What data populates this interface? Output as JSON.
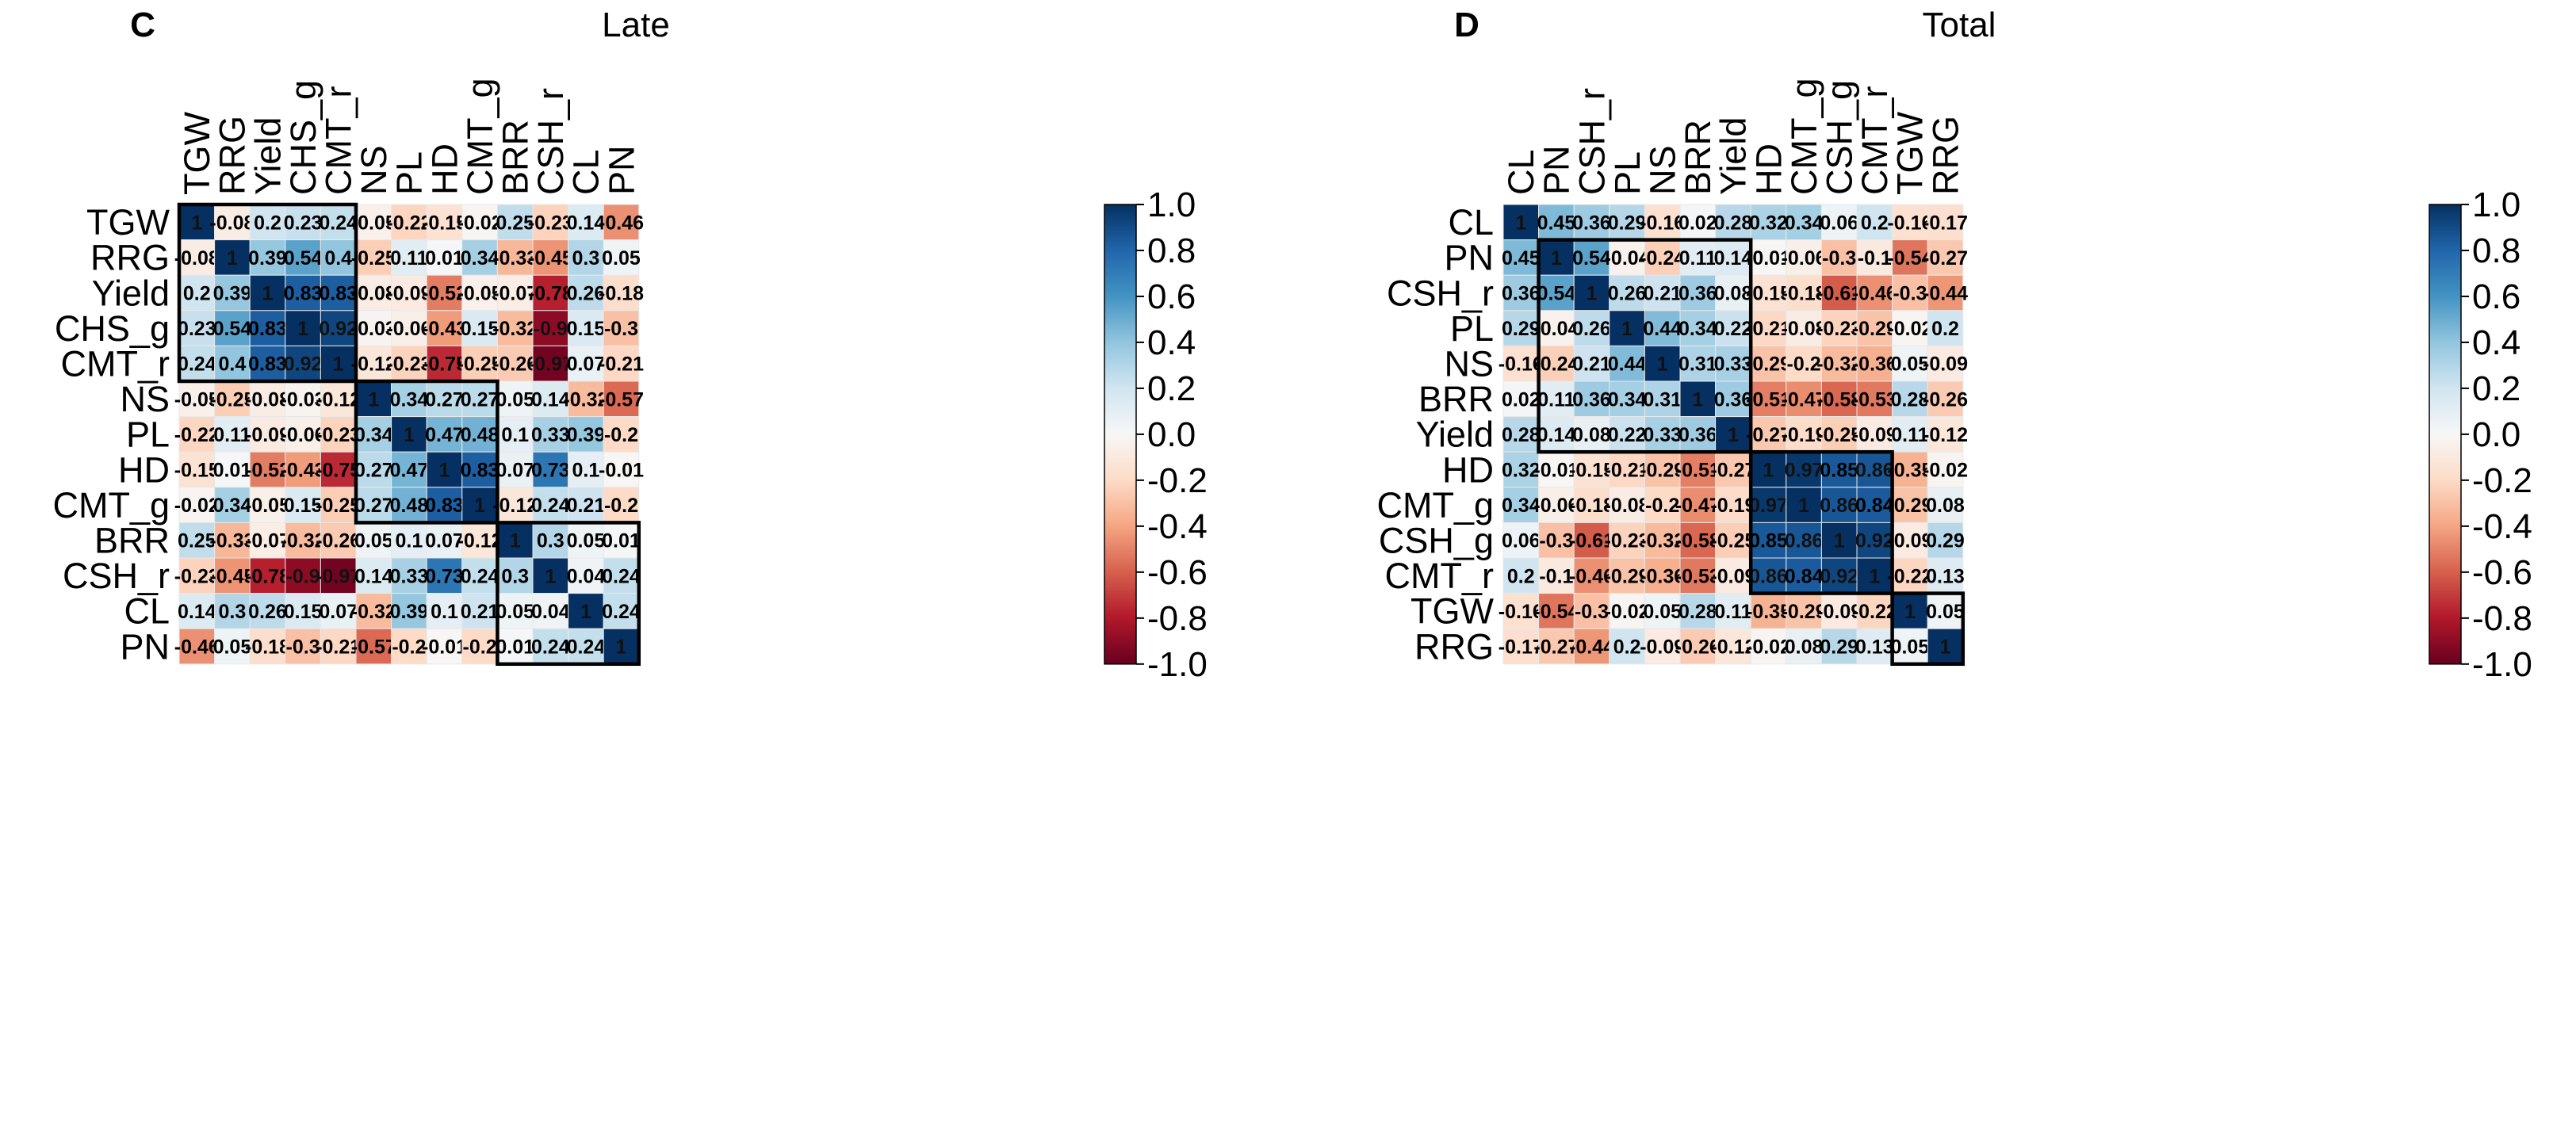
{
  "figure": {
    "background": "#ffffff"
  },
  "color_scale": {
    "stops": [
      {
        "v": -1.0,
        "c": "#67001f"
      },
      {
        "v": -0.8,
        "c": "#b2182b"
      },
      {
        "v": -0.6,
        "c": "#d6604d"
      },
      {
        "v": -0.4,
        "c": "#f4a582"
      },
      {
        "v": -0.2,
        "c": "#fddbc7"
      },
      {
        "v": 0.0,
        "c": "#f7f7f7"
      },
      {
        "v": 0.2,
        "c": "#d1e5f0"
      },
      {
        "v": 0.4,
        "c": "#92c5de"
      },
      {
        "v": 0.6,
        "c": "#4393c3"
      },
      {
        "v": 0.8,
        "c": "#2166ac"
      },
      {
        "v": 1.0,
        "c": "#053061"
      }
    ],
    "ticks": [
      "1.0",
      "0.8",
      "0.6",
      "0.4",
      "0.2",
      "0.0",
      "-0.2",
      "-0.4",
      "-0.6",
      "-0.8",
      "-1.0"
    ]
  },
  "chart_data": [
    {
      "type": "heatmap",
      "panel_letter": "C",
      "title": "Late",
      "labels": [
        "TGW",
        "RRG",
        "Yield",
        "CHS_g",
        "CMT_r",
        "NS",
        "PL",
        "HD",
        "CMT_g",
        "BRR",
        "CSH_r",
        "CL",
        "PN"
      ],
      "matrix": [
        [
          "1",
          "-0.08",
          "0.2",
          "0.23",
          "0.24",
          "-0.05",
          "-0.22",
          "-0.15",
          "-0.02",
          "0.25",
          "-0.23",
          "0.14",
          "-0.46"
        ],
        [
          "-0.08",
          "1",
          "0.39",
          "0.54",
          "0.4",
          "-0.25",
          "0.11",
          "0.01",
          "0.34",
          "-0.33",
          "-0.45",
          "0.3",
          "0.05"
        ],
        [
          "0.2",
          "0.39",
          "1",
          "0.83",
          "0.83",
          "-0.08",
          "-0.09",
          "-0.52",
          "-0.05",
          "-0.07",
          "-0.78",
          "0.26",
          "-0.18"
        ],
        [
          "0.23",
          "0.54",
          "0.83",
          "1",
          "0.92",
          "-0.03",
          "-0.06",
          "-0.43",
          "0.15",
          "-0.32",
          "-0.9",
          "0.15",
          "-0.3"
        ],
        [
          "0.24",
          "0.4",
          "0.83",
          "0.92",
          "1",
          "-0.12",
          "-0.23",
          "-0.75",
          "-0.25",
          "-0.26",
          "-0.97",
          "0.07",
          "-0.21"
        ],
        [
          "-0.05",
          "-0.25",
          "-0.08",
          "-0.03",
          "-0.12",
          "1",
          "0.34",
          "0.27",
          "0.27",
          "0.05",
          "0.14",
          "-0.32",
          "-0.57"
        ],
        [
          "-0.22",
          "0.11",
          "-0.09",
          "-0.06",
          "-0.23",
          "0.34",
          "1",
          "0.47",
          "0.48",
          "0.1",
          "0.33",
          "0.39",
          "-0.2"
        ],
        [
          "-0.15",
          "0.01",
          "-0.52",
          "-0.43",
          "-0.75",
          "0.27",
          "0.47",
          "1",
          "0.83",
          "0.07",
          "0.73",
          "0.1",
          "-0.01"
        ],
        [
          "-0.02",
          "0.34",
          "-0.05",
          "0.15",
          "-0.25",
          "0.27",
          "0.48",
          "0.83",
          "1",
          "-0.12",
          "0.24",
          "0.21",
          "-0.2"
        ],
        [
          "0.25",
          "-0.33",
          "-0.07",
          "-0.32",
          "-0.26",
          "0.05",
          "0.1",
          "0.07",
          "-0.12",
          "1",
          "0.3",
          "0.05",
          "0.01"
        ],
        [
          "-0.23",
          "-0.45",
          "-0.78",
          "-0.9",
          "-0.97",
          "0.14",
          "0.33",
          "0.73",
          "0.24",
          "0.3",
          "1",
          "0.04",
          "0.24"
        ],
        [
          "0.14",
          "0.3",
          "0.26",
          "0.15",
          "0.07",
          "-0.32",
          "0.39",
          "0.1",
          "0.21",
          "0.05",
          "0.04",
          "1",
          "0.24"
        ],
        [
          "-0.46",
          "0.05",
          "-0.18",
          "-0.3",
          "-0.21",
          "-0.57",
          "-0.2",
          "-0.01",
          "-0.2",
          "0.01",
          "0.24",
          "0.24",
          "1"
        ]
      ],
      "clusters": [
        [
          0,
          4
        ],
        [
          5,
          8
        ],
        [
          9,
          12
        ]
      ],
      "legend": "right colorbar",
      "value_range": [
        -1.0,
        1.0
      ]
    },
    {
      "type": "heatmap",
      "panel_letter": "D",
      "title": "Total",
      "labels": [
        "CL",
        "PN",
        "CSH_r",
        "PL",
        "NS",
        "BRR",
        "Yield",
        "HD",
        "CMT_g",
        "CSH_g",
        "CMT_r",
        "TGW",
        "RRG"
      ],
      "matrix": [
        [
          "1",
          "0.45",
          "0.36",
          "0.29",
          "-0.16",
          "0.02",
          "0.28",
          "0.32",
          "0.34",
          "0.06",
          "0.2",
          "-0.16",
          "-0.17"
        ],
        [
          "0.45",
          "1",
          "0.54",
          "-0.04",
          "-0.24",
          "0.11",
          "0.14",
          "-0.01",
          "-0.06",
          "-0.3",
          "-0.1",
          "-0.54",
          "-0.27"
        ],
        [
          "0.36",
          "0.54",
          "1",
          "0.26",
          "0.21",
          "0.36",
          "0.08",
          "-0.15",
          "-0.18",
          "-0.61",
          "-0.46",
          "-0.3",
          "-0.44"
        ],
        [
          "0.29",
          "-0.04",
          "0.26",
          "1",
          "0.44",
          "0.34",
          "0.22",
          "-0.21",
          "-0.08",
          "-0.23",
          "-0.29",
          "-0.02",
          "0.2"
        ],
        [
          "-0.16",
          "-0.24",
          "0.21",
          "0.44",
          "1",
          "0.31",
          "0.33",
          "-0.29",
          "-0.2",
          "-0.32",
          "-0.36",
          "0.05",
          "-0.09"
        ],
        [
          "0.02",
          "0.11",
          "0.36",
          "0.34",
          "0.31",
          "1",
          "0.36",
          "-0.51",
          "-0.47",
          "-0.58",
          "-0.53",
          "0.28",
          "-0.26"
        ],
        [
          "0.28",
          "0.14",
          "0.08",
          "0.22",
          "0.33",
          "0.36",
          "1",
          "-0.27",
          "-0.19",
          "-0.25",
          "-0.09",
          "0.11",
          "-0.12"
        ],
        [
          "0.32",
          "-0.01",
          "-0.15",
          "-0.21",
          "-0.29",
          "-0.51",
          "-0.27",
          "1",
          "0.97",
          "0.85",
          "0.86",
          "-0.35",
          "-0.02"
        ],
        [
          "0.34",
          "-0.06",
          "-0.18",
          "-0.08",
          "-0.2",
          "-0.47",
          "-0.19",
          "0.97",
          "1",
          "0.86",
          "0.84",
          "-0.29",
          "0.08"
        ],
        [
          "0.06",
          "-0.3",
          "-0.61",
          "-0.23",
          "-0.32",
          "-0.58",
          "-0.25",
          "0.85",
          "0.86",
          "1",
          "0.92",
          "-0.09",
          "0.29"
        ],
        [
          "0.2",
          "-0.1",
          "-0.46",
          "-0.29",
          "-0.36",
          "-0.53",
          "-0.09",
          "0.86",
          "0.84",
          "0.92",
          "1",
          "-0.22",
          "0.13"
        ],
        [
          "-0.16",
          "-0.54",
          "-0.3",
          "-0.02",
          "0.05",
          "0.28",
          "0.11",
          "-0.35",
          "-0.29",
          "-0.09",
          "-0.22",
          "1",
          "0.05"
        ],
        [
          "-0.17",
          "-0.27",
          "-0.44",
          "0.2",
          "-0.09",
          "-0.26",
          "-0.12",
          "-0.02",
          "0.08",
          "0.29",
          "0.13",
          "0.05",
          "1"
        ]
      ],
      "clusters": [
        [
          1,
          6
        ],
        [
          7,
          10
        ],
        [
          11,
          12
        ]
      ],
      "legend": "right colorbar",
      "value_range": [
        -1.0,
        1.0
      ]
    }
  ]
}
